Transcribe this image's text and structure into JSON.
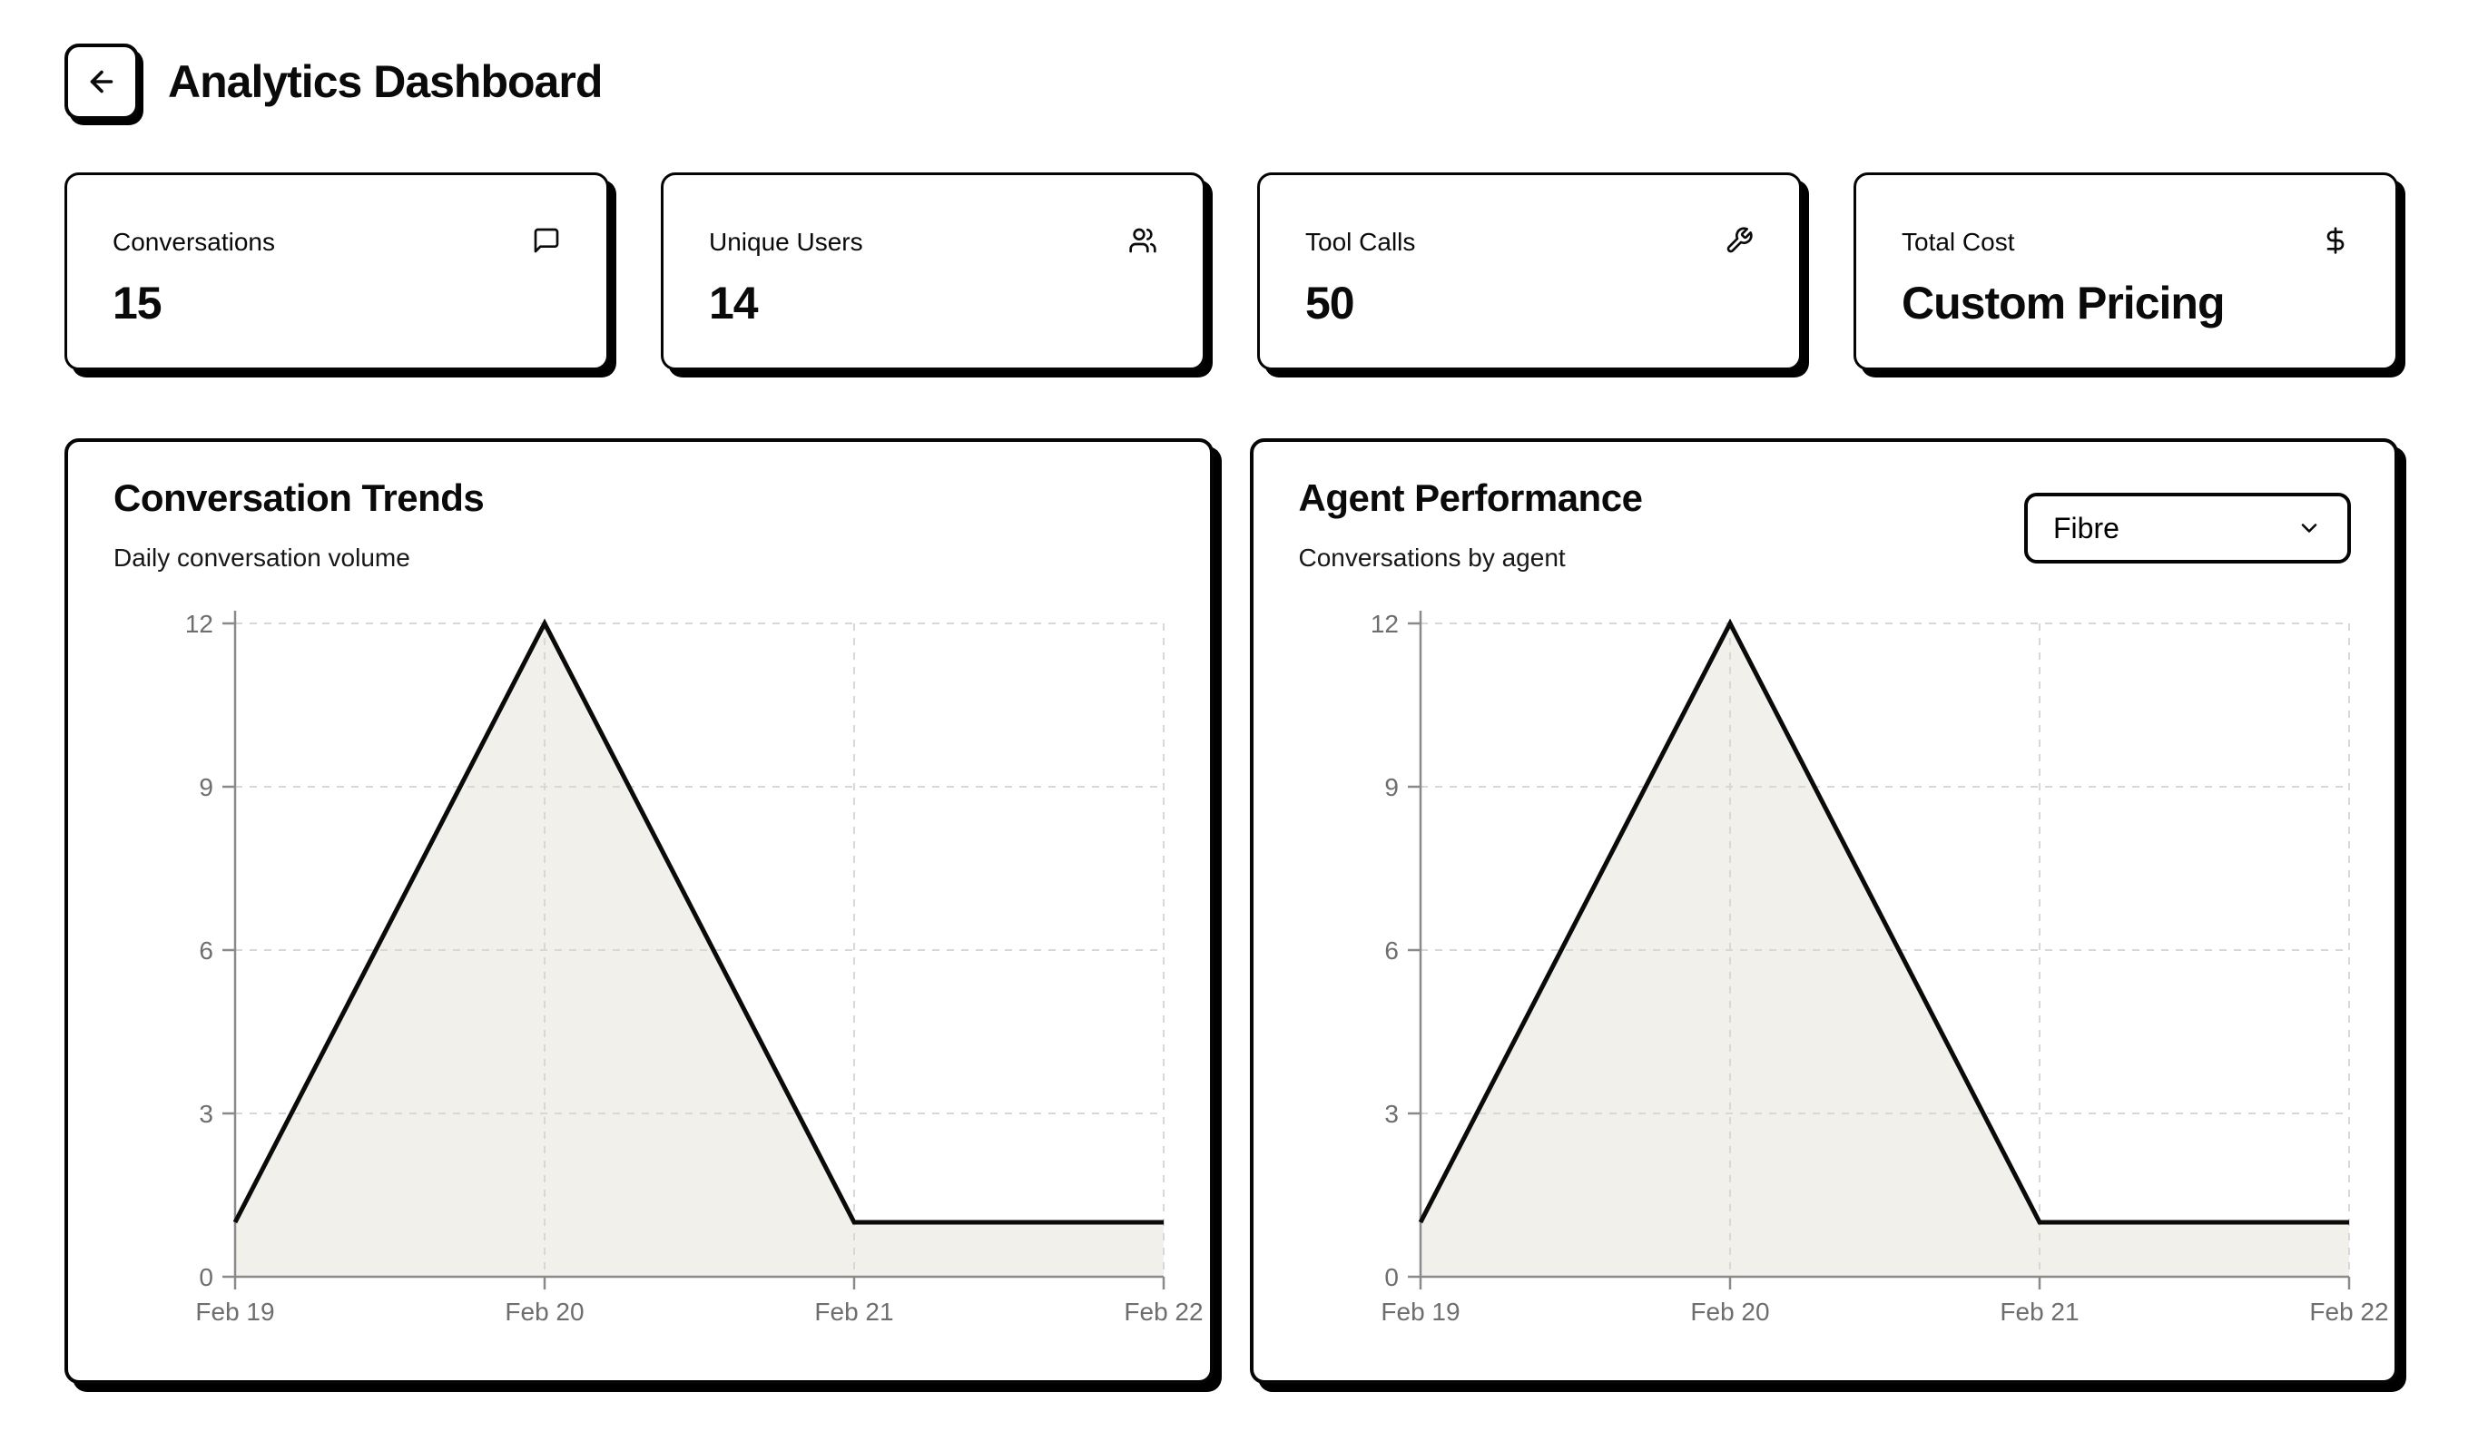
{
  "header": {
    "title": "Analytics Dashboard",
    "back_icon": "arrow-left-icon"
  },
  "stats": [
    {
      "label": "Conversations",
      "value": "15",
      "icon": "message-square-icon"
    },
    {
      "label": "Unique Users",
      "value": "14",
      "icon": "users-icon"
    },
    {
      "label": "Tool Calls",
      "value": "50",
      "icon": "wrench-icon"
    },
    {
      "label": "Total Cost",
      "value": "Custom Pricing",
      "icon": "dollar-sign-icon"
    }
  ],
  "charts": {
    "left": {
      "title": "Conversation Trends",
      "subtitle": "Daily conversation volume"
    },
    "right": {
      "title": "Agent Performance",
      "subtitle": "Conversations by agent",
      "agent_select": {
        "value": "Fibre",
        "icon": "chevron-down-icon"
      }
    }
  },
  "chart_data": [
    {
      "type": "area",
      "title": "Conversation Trends",
      "subtitle": "Daily conversation volume",
      "x": [
        "Feb 19",
        "Feb 20",
        "Feb 21",
        "Feb 22"
      ],
      "series": [
        {
          "name": "conversations",
          "values": [
            1,
            12,
            1,
            1
          ]
        }
      ],
      "ylim": [
        0,
        12
      ],
      "yticks": [
        0,
        3,
        6,
        9,
        12
      ],
      "grid": "dashed",
      "legend": false,
      "style": {
        "fill": "#f1f0ea",
        "line": "#0a0a0a",
        "axis": "#8a8a8a",
        "grid_color": "#d8d8d8",
        "tick_label": "#6e6e6e"
      }
    },
    {
      "type": "area",
      "title": "Agent Performance",
      "subtitle": "Conversations by agent",
      "x": [
        "Feb 19",
        "Feb 20",
        "Feb 21",
        "Feb 22"
      ],
      "series": [
        {
          "name": "conversations",
          "values": [
            1,
            12,
            1,
            1
          ]
        }
      ],
      "ylim": [
        0,
        12
      ],
      "yticks": [
        0,
        3,
        6,
        9,
        12
      ],
      "grid": "dashed",
      "legend": false,
      "style": {
        "fill": "#f1f0ea",
        "line": "#0a0a0a",
        "axis": "#8a8a8a",
        "grid_color": "#d8d8d8",
        "tick_label": "#6e6e6e"
      }
    }
  ],
  "colors": {
    "background": "#ffffff",
    "card_border": "#050505",
    "shadow": "#000000"
  }
}
